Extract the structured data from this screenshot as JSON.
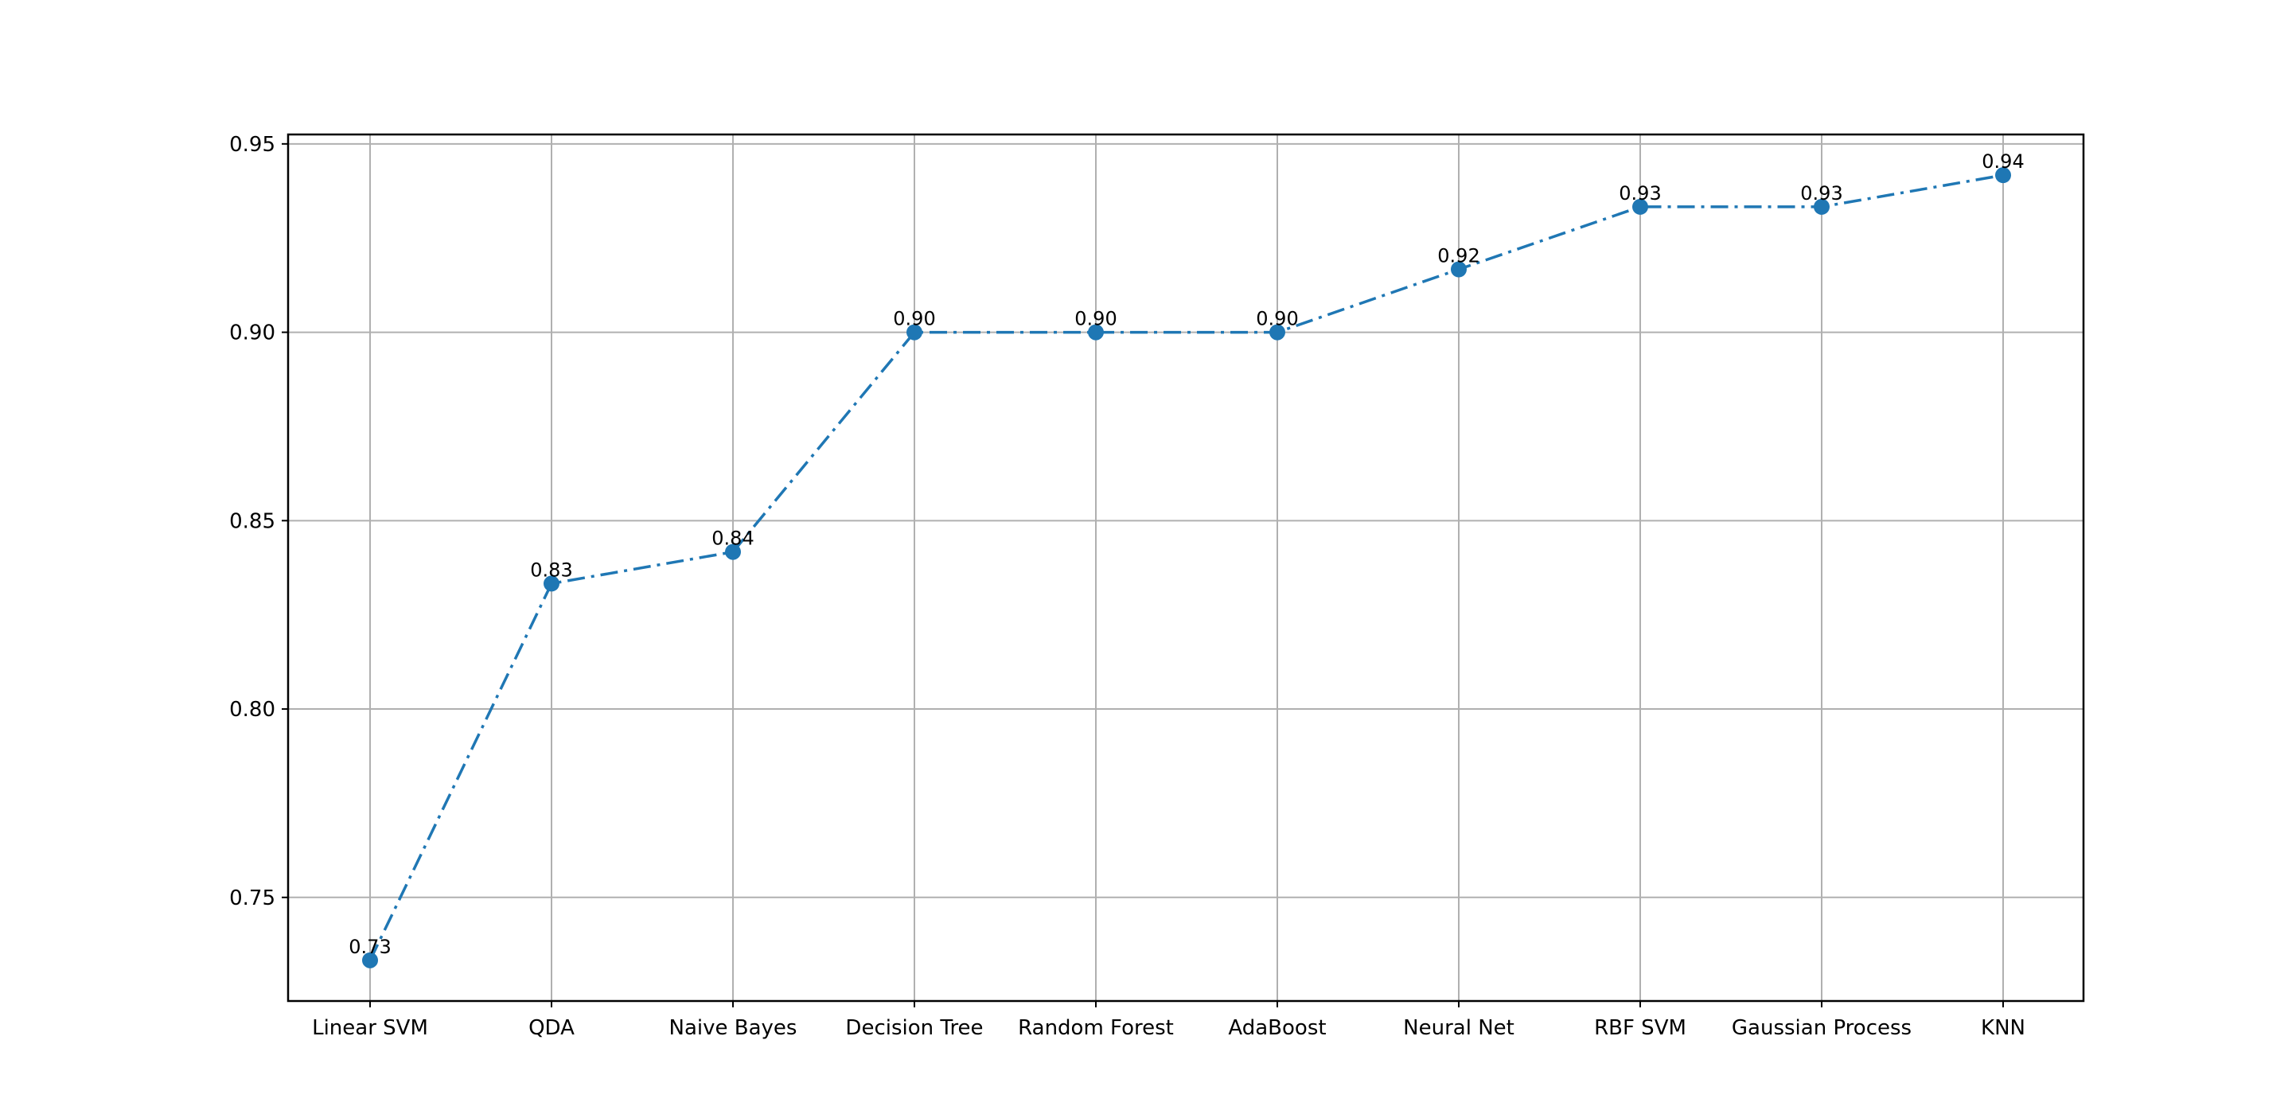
{
  "chart_data": {
    "type": "line",
    "categories": [
      "Linear SVM",
      "QDA",
      "Naive Bayes",
      "Decision Tree",
      "Random Forest",
      "AdaBoost",
      "Neural Net",
      "RBF SVM",
      "Gaussian Process",
      "KNN"
    ],
    "values": [
      0.7333,
      0.8333,
      0.8417,
      0.9,
      0.9,
      0.9,
      0.9167,
      0.9333,
      0.9333,
      0.9417
    ],
    "data_labels": [
      "0.73",
      "0.83",
      "0.84",
      "0.90",
      "0.90",
      "0.90",
      "0.92",
      "0.93",
      "0.93",
      "0.94"
    ],
    "yticks": [
      "0.75",
      "0.80",
      "0.85",
      "0.90",
      "0.95"
    ],
    "ytick_values": [
      0.75,
      0.8,
      0.85,
      0.9,
      0.95
    ],
    "ylim": [
      0.7225,
      0.9525
    ],
    "title": "",
    "xlabel": "",
    "ylabel": "",
    "grid": true,
    "line_style": "dash-dot",
    "marker": "circle",
    "colors": {
      "series": "#1f77b4",
      "grid": "#b0b0b0",
      "axis": "#000000"
    }
  }
}
